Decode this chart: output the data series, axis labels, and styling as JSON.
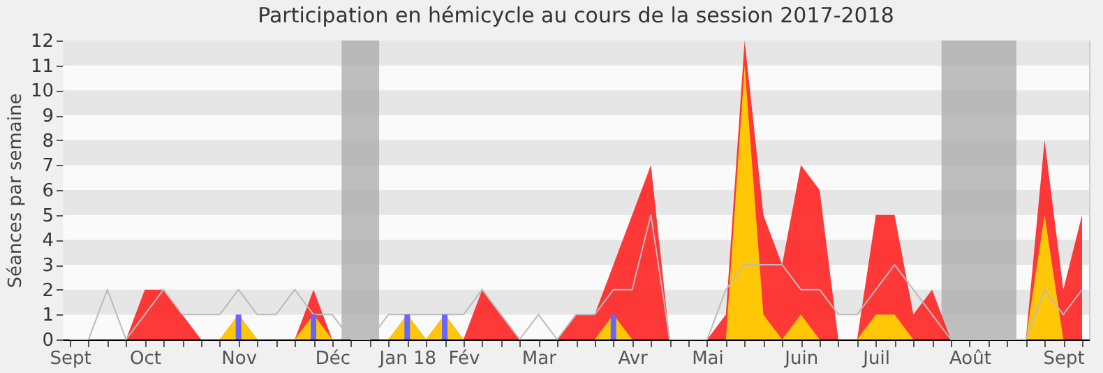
{
  "chart_data": {
    "type": "area",
    "title": "Participation en hémicycle au cours de la session 2017-2018",
    "ylabel": "Séances par semaine",
    "categories": [
      "Sept",
      null,
      null,
      null,
      "Oct",
      null,
      null,
      null,
      null,
      "Nov",
      null,
      null,
      null,
      null,
      "Déc",
      null,
      null,
      null,
      "Jan 18",
      null,
      null,
      "Fév",
      null,
      null,
      null,
      "Mar",
      null,
      null,
      null,
      null,
      "Avr",
      null,
      null,
      null,
      "Mai",
      null,
      null,
      null,
      null,
      "Juin",
      null,
      null,
      null,
      "Juil",
      null,
      null,
      null,
      null,
      "Août",
      null,
      null,
      null,
      null,
      "Sept",
      null
    ],
    "series": [
      {
        "color": "#ff2222",
        "values": [
          0,
          0,
          0,
          0,
          2,
          2,
          1,
          0,
          0,
          1,
          0,
          0,
          0,
          2,
          0,
          0,
          0,
          0,
          1,
          0,
          1,
          0,
          2,
          1,
          0,
          0,
          0,
          1,
          1,
          3,
          5,
          7,
          0,
          0,
          0,
          1,
          12,
          5,
          3,
          7,
          6,
          0,
          0,
          5,
          5,
          1,
          2,
          0,
          0,
          0,
          0,
          0,
          8,
          2,
          5
        ]
      },
      {
        "color": "#ffd700",
        "values": [
          0,
          0,
          0,
          0,
          0,
          0,
          0,
          0,
          0,
          1,
          0,
          0,
          0,
          1,
          0,
          0,
          0,
          0,
          1,
          0,
          1,
          0,
          0,
          0,
          0,
          0,
          0,
          0,
          0,
          1,
          0,
          0,
          0,
          0,
          0,
          0,
          11,
          1,
          0,
          1,
          0,
          0,
          0,
          1,
          1,
          0,
          0,
          0,
          0,
          0,
          0,
          0,
          5,
          0,
          0
        ]
      },
      {
        "type": "line",
        "color": "#bbbbbb",
        "values": [
          0,
          0,
          2,
          0,
          1,
          2,
          1,
          1,
          1,
          2,
          1,
          1,
          2,
          1,
          1,
          0,
          0,
          1,
          1,
          1,
          1,
          1,
          2,
          1,
          0,
          1,
          0,
          1,
          1,
          2,
          2,
          5,
          0,
          0,
          0,
          2,
          3,
          3,
          3,
          2,
          2,
          1,
          1,
          2,
          3,
          2,
          1,
          0,
          0,
          0,
          0,
          0,
          2,
          1,
          2
        ]
      },
      {
        "type": "bar",
        "color": "#6666ff",
        "values": [
          0,
          0,
          0,
          0,
          0,
          0,
          0,
          0,
          0,
          1,
          0,
          0,
          0,
          1,
          0,
          0,
          0,
          0,
          1,
          0,
          1,
          0,
          0,
          0,
          0,
          0,
          0,
          0,
          0,
          1,
          0,
          0,
          0,
          0,
          0,
          0,
          0,
          0,
          0,
          0,
          0,
          0,
          0,
          0,
          0,
          0,
          0,
          0,
          0,
          0,
          0,
          0,
          0,
          0,
          0
        ]
      }
    ],
    "ylim": [
      0,
      12
    ],
    "yticks": [
      0,
      1,
      2,
      3,
      4,
      5,
      6,
      7,
      8,
      9,
      10,
      11,
      12
    ],
    "grid": "y"
  }
}
